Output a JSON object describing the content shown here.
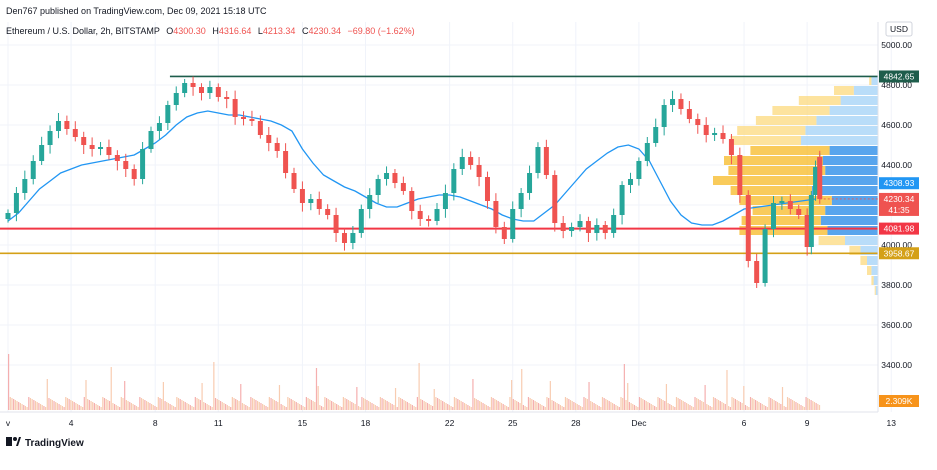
{
  "published_by": "Den767 published on TradingView.com, Dec 09, 2021 15:18 UTC",
  "symbol": "Ethereum / U.S. Dollar, 2h, BITSTAMP",
  "ohlc": {
    "o_label": "O",
    "o_value": "4300.30",
    "h_label": "H",
    "h_value": "4316.64",
    "l_label": "L",
    "l_value": "4213.34",
    "c_label": "C",
    "c_value": "4230.34",
    "change": "−69.80 (−1.62%)"
  },
  "currency": "USD",
  "brand": "TradingView",
  "colors": {
    "up": "#26a69a",
    "down": "#ef5350",
    "ma": "#2196f3",
    "resistance": "#1e5d4b",
    "support_red": "#f23645",
    "support_gold": "#d4a017",
    "vp_up": "#fcd97e",
    "vp_down": "#a8d4f7",
    "vp_up_hi": "#f7b924",
    "vp_down_hi": "#2e8fe8"
  },
  "chart_data": {
    "type": "candlestick",
    "ylim": [
      3200,
      5100
    ],
    "y_ticks": [
      "5000.00",
      "4800.00",
      "4600.00",
      "4400.00",
      "4200.00",
      "4000.00",
      "3800.00",
      "3600.00",
      "3400.00"
    ],
    "x_ticks": [
      "v",
      "4",
      "8",
      "11",
      "15",
      "18",
      "22",
      "25",
      "28",
      "Dec",
      "6",
      "9",
      "13"
    ],
    "x_tick_positions_day": [
      0,
      3,
      7,
      10,
      14,
      17,
      21,
      24,
      27,
      30,
      35,
      38,
      42
    ],
    "last_data_day": 38.6,
    "horizontal_lines": [
      {
        "name": "resistance",
        "value": 4842.65,
        "label": "4842.65"
      },
      {
        "name": "support-red",
        "value": 4081.98,
        "label": "4081.98"
      },
      {
        "name": "support-gold",
        "value": 3958.67,
        "label": "3958.67"
      }
    ],
    "price_labels": {
      "ma_value": "4308.93",
      "last_price": "4230.34",
      "countdown": "41:35",
      "volume": "2.309K"
    },
    "closes": [
      4160,
      4260,
      4330,
      4420,
      4500,
      4570,
      4620,
      4580,
      4540,
      4500,
      4480,
      4490,
      4450,
      4420,
      4380,
      4330,
      4480,
      4570,
      4610,
      4700,
      4760,
      4810,
      4790,
      4760,
      4790,
      4740,
      4730,
      4640,
      4630,
      4620,
      4550,
      4510,
      4470,
      4360,
      4280,
      4210,
      4230,
      4180,
      4150,
      4060,
      4010,
      4060,
      4180,
      4250,
      4330,
      4360,
      4310,
      4270,
      4170,
      4130,
      4120,
      4180,
      4260,
      4380,
      4440,
      4400,
      4340,
      4220,
      4090,
      4030,
      4180,
      4260,
      4360,
      4490,
      4350,
      4110,
      4070,
      4090,
      4120,
      4060,
      4100,
      4060,
      4150,
      4300,
      4330,
      4420,
      4510,
      4590,
      4700,
      4730,
      4680,
      4630,
      4600,
      4550,
      4560,
      4530,
      4450,
      4250,
      3920,
      3810,
      4080,
      4210,
      4220,
      4180,
      4150,
      3990,
      4250,
      4390,
      4440,
      4390,
      4340,
      4290,
      4230
    ],
    "candle_days": [
      0,
      0.4,
      0.8,
      1.2,
      1.6,
      2,
      2.4,
      2.8,
      3.2,
      3.6,
      4,
      4.4,
      4.8,
      5.2,
      5.6,
      6,
      6.4,
      6.8,
      7.2,
      7.6,
      8,
      8.4,
      8.8,
      9.2,
      9.6,
      10,
      10.4,
      10.8,
      11.2,
      11.6,
      12,
      12.4,
      12.8,
      13.2,
      13.6,
      14,
      14.4,
      14.8,
      15.2,
      15.6,
      16,
      16.4,
      16.8,
      17.2,
      17.6,
      18,
      18.4,
      18.8,
      19.2,
      19.6,
      20,
      20.4,
      20.8,
      21.2,
      21.6,
      22,
      22.4,
      22.8,
      23.2,
      23.6,
      24,
      24.4,
      24.8,
      25.2,
      25.6,
      26,
      26.4,
      26.8,
      27.2,
      27.6,
      28,
      28.4,
      28.8,
      29.2,
      29.6,
      30,
      30.4,
      30.8,
      31.2,
      31.6,
      32,
      32.4,
      32.8,
      33.2,
      33.6,
      34,
      34.4,
      34.8,
      35.2,
      35.6,
      36,
      36.4,
      36.8,
      37.2,
      37.6,
      38,
      38.2,
      38.4,
      38.6,
      38.6,
      38.6,
      38.6,
      38.6
    ],
    "ma": [
      4120,
      4160,
      4220,
      4280,
      4320,
      4360,
      4380,
      4400,
      4410,
      4420,
      4430,
      4440,
      4450,
      4480,
      4510,
      4550,
      4600,
      4640,
      4660,
      4670,
      4660,
      4650,
      4650,
      4640,
      4630,
      4620,
      4600,
      4570,
      4480,
      4410,
      4350,
      4320,
      4290,
      4270,
      4240,
      4210,
      4190,
      4190,
      4210,
      4230,
      4240,
      4250,
      4250,
      4240,
      4220,
      4200,
      4180,
      4150,
      4130,
      4120,
      4120,
      4160,
      4200,
      4260,
      4320,
      4380,
      4420,
      4460,
      4490,
      4500,
      4480,
      4420,
      4320,
      4220,
      4150,
      4110,
      4100,
      4100,
      4120,
      4180,
      4230
    ],
    "ma_days": [
      0,
      0.5,
      1,
      1.5,
      2,
      2.5,
      3,
      3.5,
      4,
      4.5,
      5,
      5.5,
      6,
      6.5,
      7,
      7.5,
      8,
      8.5,
      9,
      9.5,
      10,
      10.5,
      11,
      11.5,
      12,
      12.5,
      13,
      13.5,
      14,
      14.5,
      15,
      15.5,
      16,
      16.5,
      17,
      17.5,
      18,
      18.5,
      19,
      19.5,
      20,
      20.5,
      21,
      21.5,
      22,
      22.5,
      23,
      23.5,
      24,
      24.5,
      25,
      25.5,
      26,
      26.5,
      27,
      27.5,
      28,
      28.5,
      29,
      29.5,
      30,
      30.5,
      31,
      31.5,
      32,
      32.5,
      33,
      33.5,
      34,
      35,
      38.4
    ],
    "volume_profile": {
      "bucket_prices": [
        4820,
        4770,
        4720,
        4670,
        4620,
        4570,
        4520,
        4470,
        4420,
        4370,
        4320,
        4270,
        4220,
        4170,
        4120,
        4070,
        4020,
        3970,
        3920,
        3870,
        3820,
        3770
      ],
      "up_volume": [
        2,
        18,
        38,
        52,
        55,
        62,
        64,
        72,
        90,
        88,
        96,
        74,
        84,
        66,
        72,
        80,
        24,
        10,
        6,
        4,
        2,
        1
      ],
      "down_volume": [
        6,
        22,
        34,
        44,
        56,
        66,
        70,
        44,
        50,
        48,
        54,
        60,
        42,
        48,
        52,
        46,
        30,
        16,
        10,
        6,
        4,
        2
      ]
    }
  }
}
